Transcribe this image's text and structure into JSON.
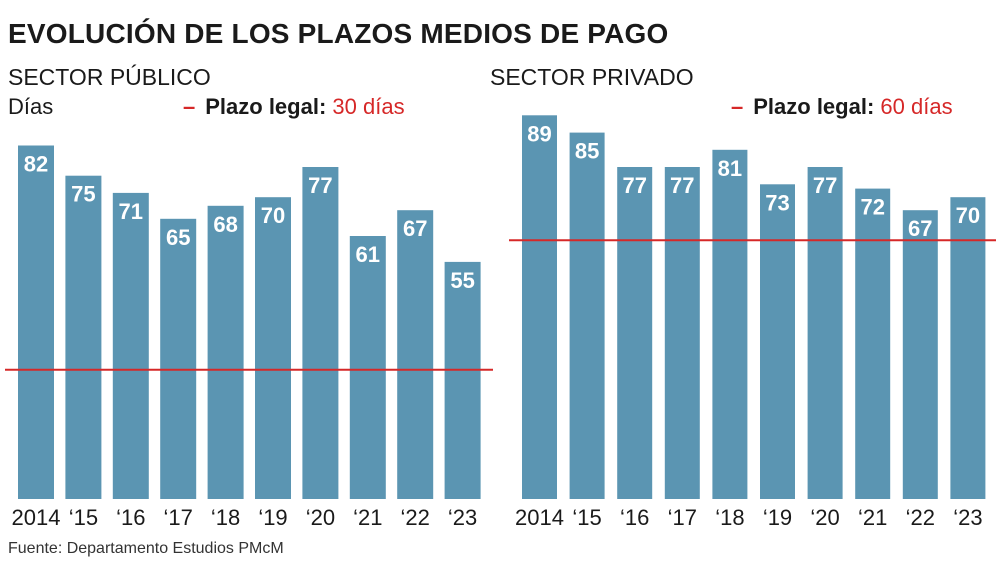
{
  "title": "EVOLUCIÓN DE LOS PLAZOS MEDIOS DE PAGO",
  "unit_label": "Días",
  "source": "Fuente: Departamento Estudios PMcM",
  "colors": {
    "bar": "#5b95b2",
    "reference": "#d62828",
    "text": "#1a1a1a"
  },
  "chart_data": [
    {
      "type": "bar",
      "title": "SECTOR PÚBLICO",
      "ylabel": "Días",
      "categories": [
        "2014",
        "‘15",
        "‘16",
        "‘17",
        "‘18",
        "‘19",
        "‘20",
        "‘21",
        "‘22",
        "‘23"
      ],
      "values": [
        82,
        75,
        71,
        65,
        68,
        70,
        77,
        61,
        67,
        55
      ],
      "ylim": [
        0,
        90
      ],
      "reference_line": {
        "label": "Plazo legal:",
        "value_text": "30 días",
        "value": 30
      }
    },
    {
      "type": "bar",
      "title": "SECTOR PRIVADO",
      "ylabel": "",
      "categories": [
        "2014",
        "‘15",
        "‘16",
        "‘17",
        "‘18",
        "‘19",
        "‘20",
        "‘21",
        "‘22",
        "‘23"
      ],
      "values": [
        89,
        85,
        77,
        77,
        81,
        73,
        77,
        72,
        67,
        70
      ],
      "ylim": [
        0,
        90
      ],
      "reference_line": {
        "label": "Plazo legal:",
        "value_text": "60 días",
        "value": 60
      }
    }
  ]
}
